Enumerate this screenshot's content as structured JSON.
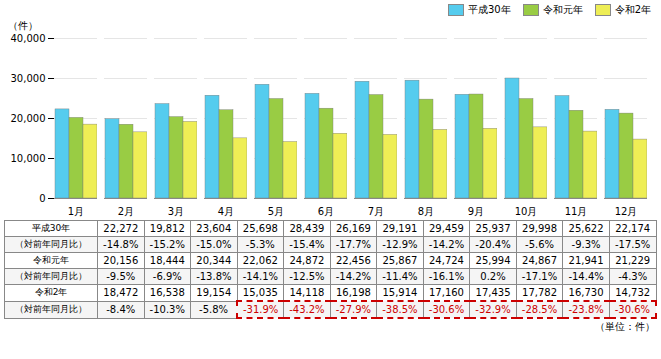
{
  "chart_data": {
    "type": "bar",
    "categories": [
      "1月",
      "2月",
      "3月",
      "4月",
      "5月",
      "6月",
      "7月",
      "8月",
      "9月",
      "10月",
      "11月",
      "12月"
    ],
    "series": [
      {
        "name": "平成30年",
        "color": "#55CCEE",
        "values": [
          22272,
          19812,
          23604,
          25698,
          28439,
          26169,
          29191,
          29459,
          25937,
          29998,
          25622,
          22174
        ],
        "value_labels": [
          "22,272",
          "19,812",
          "23,604",
          "25,698",
          "28,439",
          "26,169",
          "29,191",
          "29,459",
          "25,937",
          "29,998",
          "25,622",
          "22,174"
        ],
        "yoy_labels": [
          "-14.8%",
          "-15.2%",
          "-15.0%",
          "-5.3%",
          "-15.4%",
          "-17.7%",
          "-12.9%",
          "-14.2%",
          "-20.4%",
          "-5.6%",
          "-9.3%",
          "-17.5%"
        ]
      },
      {
        "name": "令和元年",
        "color": "#99CC44",
        "values": [
          20156,
          18444,
          20344,
          22062,
          24872,
          22456,
          25867,
          24724,
          25994,
          24867,
          21941,
          21229
        ],
        "value_labels": [
          "20,156",
          "18,444",
          "20,344",
          "22,062",
          "24,872",
          "22,456",
          "25,867",
          "24,724",
          "25,994",
          "24,867",
          "21,941",
          "21,229"
        ],
        "yoy_labels": [
          "-9.5%",
          "-6.9%",
          "-13.8%",
          "-14.1%",
          "-12.5%",
          "-14.2%",
          "-11.4%",
          "-16.1%",
          "0.2%",
          "-17.1%",
          "-14.4%",
          "-4.3%"
        ]
      },
      {
        "name": "令和2年",
        "color": "#EEEE55",
        "values": [
          18472,
          16538,
          19154,
          15035,
          14118,
          16198,
          15914,
          17160,
          17435,
          17782,
          16730,
          14732
        ],
        "value_labels": [
          "18,472",
          "16,538",
          "19,154",
          "15,035",
          "14,118",
          "16,198",
          "15,914",
          "17,160",
          "17,435",
          "17,782",
          "16,730",
          "14,732"
        ],
        "yoy_labels": [
          "-8.4%",
          "-10.3%",
          "-5.8%",
          "-31.9%",
          "-43.2%",
          "-27.9%",
          "-38.5%",
          "-30.6%",
          "-32.9%",
          "-28.5%",
          "-23.8%",
          "-30.6%"
        ],
        "highlight_from": "4月",
        "highlight_color": "#cc0000"
      }
    ],
    "ylim": [
      0,
      40000
    ],
    "yticks": [
      0,
      {
        "value": 10000,
        "label": "10,000"
      },
      {
        "value": 20000,
        "label": "20,000"
      },
      {
        "value": 30000,
        "label": "30,000"
      },
      {
        "value": 40000,
        "label": "40,000"
      }
    ],
    "ylabel": "（件）",
    "grid": true,
    "legend": "upper right",
    "yoy_row_label": "（対前年同月比）",
    "unit_label": "（単位：件）"
  }
}
